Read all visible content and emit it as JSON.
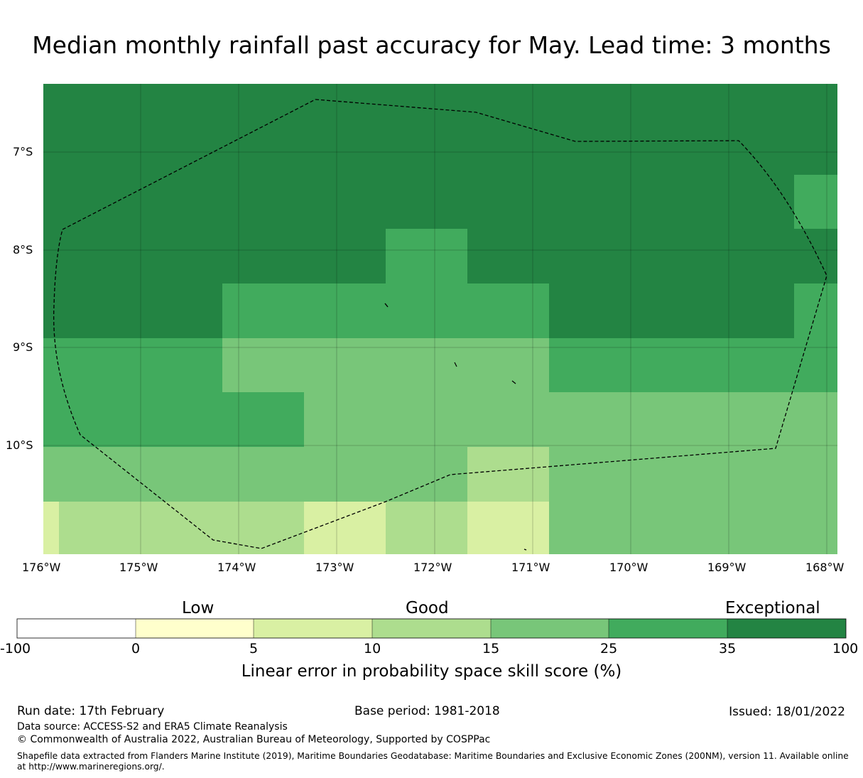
{
  "title": "Median monthly rainfall past accuracy for May. Lead time: 3 months",
  "map": {
    "lat_labels": [
      "7°S",
      "8°S",
      "9°S",
      "10°S"
    ],
    "lon_labels": [
      "176°W",
      "175°W",
      "174°W",
      "173°W",
      "172°W",
      "171°W",
      "170°W",
      "169°W",
      "168°W"
    ],
    "boundary": "Exclusive Economic Zone (200NM) boundary, dashed"
  },
  "legend": {
    "categories": [
      "Low",
      "Good",
      "Exceptional"
    ],
    "ticks": [
      "-100",
      "0",
      "5",
      "10",
      "15",
      "25",
      "35",
      "100"
    ],
    "colors": [
      "#ffffff",
      "#ffffcc",
      "#d9f0a3",
      "#addd8e",
      "#78c679",
      "#41ab5d",
      "#238443"
    ],
    "label": "Linear error in probability space skill score (%)"
  },
  "footer": {
    "run_date": "Run date: 17th February",
    "base_period": "Base period: 1981-2018",
    "issued": "Issued: 18/01/2022",
    "data_source": "Data source: ACCESS-S2 and ERA5 Climate Reanalysis",
    "copyright": "© Commonwealth of Australia 2022, Australian Bureau of Meteorology, Supported by COSPPac",
    "shapefile": "Shapefile data extracted from Flanders Marine Institute (2019), Maritime Boundaries Geodatabase: Maritime Boundaries and Exclusive Economic Zones (200NM), version 11. Available online at http://www.marineregions.org/."
  }
}
